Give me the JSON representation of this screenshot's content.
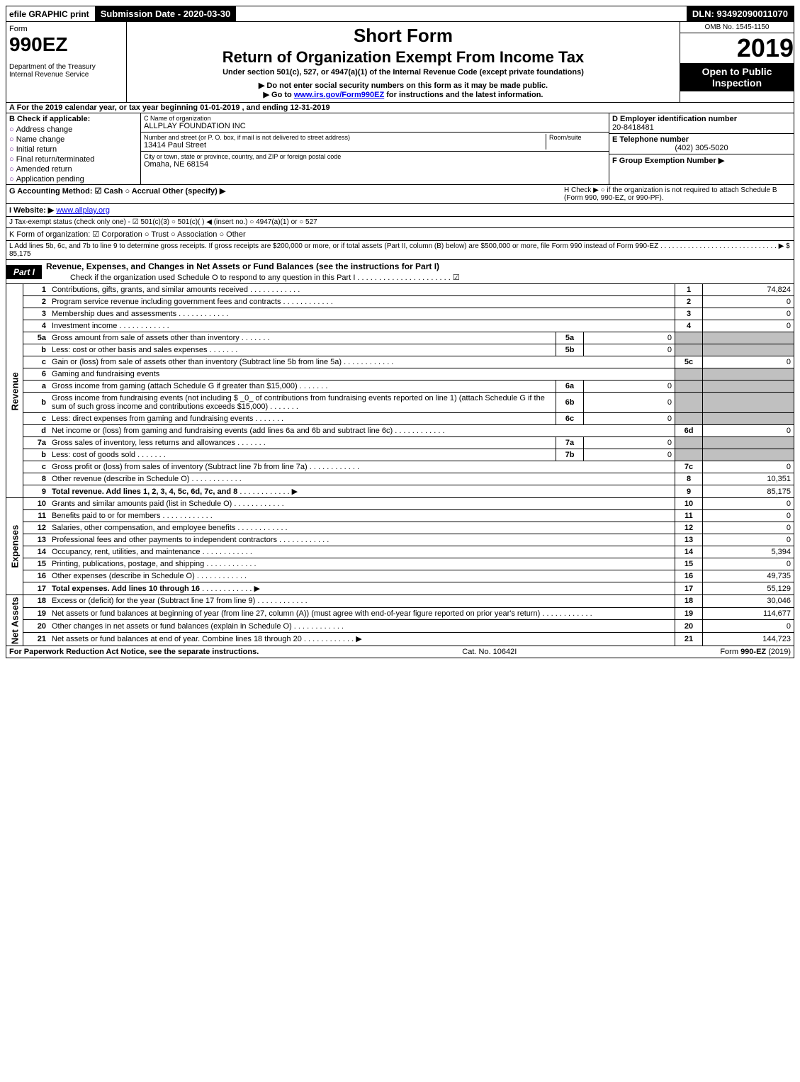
{
  "top": {
    "efile": "efile GRAPHIC print",
    "submission": "Submission Date - 2020-03-30",
    "dln": "DLN: 93492090011070"
  },
  "header": {
    "form_label": "Form",
    "form_number": "990EZ",
    "dept": "Department of the Treasury",
    "irs": "Internal Revenue Service",
    "title1": "Short Form",
    "title2": "Return of Organization Exempt From Income Tax",
    "subtitle": "Under section 501(c), 527, or 4947(a)(1) of the Internal Revenue Code (except private foundations)",
    "note1": "▶ Do not enter social security numbers on this form as it may be made public.",
    "note2_pre": "▶ Go to ",
    "note2_link": "www.irs.gov/Form990EZ",
    "note2_post": " for instructions and the latest information.",
    "omb": "OMB No. 1545-1150",
    "year": "2019",
    "open": "Open to Public Inspection"
  },
  "sectionA": "A  For the 2019 calendar year, or tax year beginning 01-01-2019 , and ending 12-31-2019",
  "checkB": {
    "title": "B  Check if applicable:",
    "items": [
      "Address change",
      "Name change",
      "Initial return",
      "Final return/terminated",
      "Amended return",
      "Application pending"
    ]
  },
  "org": {
    "c_label": "C Name of organization",
    "name": "ALLPLAY FOUNDATION INC",
    "street_label": "Number and street (or P. O. box, if mail is not delivered to street address)",
    "room_label": "Room/suite",
    "street": "13414 Paul Street",
    "city_label": "City or town, state or province, country, and ZIP or foreign postal code",
    "city": "Omaha, NE  68154"
  },
  "right": {
    "d_label": "D Employer identification number",
    "ein": "20-8418481",
    "e_label": "E Telephone number",
    "phone": "(402) 305-5020",
    "f_label": "F Group Exemption Number ▶"
  },
  "lines": {
    "g": "G Accounting Method:  ☑ Cash  ○ Accrual   Other (specify) ▶",
    "h": "H  Check ▶  ○  if the organization is not required to attach Schedule B (Form 990, 990-EZ, or 990-PF).",
    "i_pre": "I Website: ▶",
    "i_link": "www.allplay.org",
    "j": "J Tax-exempt status (check only one) -  ☑ 501(c)(3)  ○  501(c)(  ) ◀ (insert no.)  ○  4947(a)(1) or  ○  527",
    "k": "K Form of organization:   ☑ Corporation   ○ Trust   ○ Association   ○ Other",
    "l": "L Add lines 5b, 6c, and 7b to line 9 to determine gross receipts. If gross receipts are $200,000 or more, or if total assets (Part II, column (B) below) are $500,000 or more, file Form 990 instead of Form 990-EZ . . . . . . . . . . . . . . . . . . . . . . . . . . . . . . ▶ $ 85,175"
  },
  "part1": {
    "tab": "Part I",
    "title": "Revenue, Expenses, and Changes in Net Assets or Fund Balances (see the instructions for Part I)",
    "check": "Check if the organization used Schedule O to respond to any question in this Part I . . . . . . . . . . . . . . . . . . . . . .  ☑"
  },
  "sides": {
    "revenue": "Revenue",
    "expenses": "Expenses",
    "netassets": "Net Assets"
  },
  "rows": [
    {
      "n": "1",
      "d": "Contributions, gifts, grants, and similar amounts received",
      "box": "1",
      "v": "74,824"
    },
    {
      "n": "2",
      "d": "Program service revenue including government fees and contracts",
      "box": "2",
      "v": "0"
    },
    {
      "n": "3",
      "d": "Membership dues and assessments",
      "box": "3",
      "v": "0"
    },
    {
      "n": "4",
      "d": "Investment income",
      "box": "4",
      "v": "0"
    },
    {
      "n": "5a",
      "d": "Gross amount from sale of assets other than inventory",
      "sb": "5a",
      "sv": "0"
    },
    {
      "n": "b",
      "d": "Less: cost or other basis and sales expenses",
      "sb": "5b",
      "sv": "0"
    },
    {
      "n": "c",
      "d": "Gain or (loss) from sale of assets other than inventory (Subtract line 5b from line 5a)",
      "box": "5c",
      "v": "0"
    },
    {
      "n": "6",
      "d": "Gaming and fundraising events"
    },
    {
      "n": "a",
      "d": "Gross income from gaming (attach Schedule G if greater than $15,000)",
      "sb": "6a",
      "sv": "0"
    },
    {
      "n": "b",
      "d": "Gross income from fundraising events (not including $ _0_ of contributions from fundraising events reported on line 1) (attach Schedule G if the sum of such gross income and contributions exceeds $15,000)",
      "sb": "6b",
      "sv": "0"
    },
    {
      "n": "c",
      "d": "Less: direct expenses from gaming and fundraising events",
      "sb": "6c",
      "sv": "0"
    },
    {
      "n": "d",
      "d": "Net income or (loss) from gaming and fundraising events (add lines 6a and 6b and subtract line 6c)",
      "box": "6d",
      "v": "0"
    },
    {
      "n": "7a",
      "d": "Gross sales of inventory, less returns and allowances",
      "sb": "7a",
      "sv": "0"
    },
    {
      "n": "b",
      "d": "Less: cost of goods sold",
      "sb": "7b",
      "sv": "0"
    },
    {
      "n": "c",
      "d": "Gross profit or (loss) from sales of inventory (Subtract line 7b from line 7a)",
      "box": "7c",
      "v": "0"
    },
    {
      "n": "8",
      "d": "Other revenue (describe in Schedule O)",
      "box": "8",
      "v": "10,351"
    },
    {
      "n": "9",
      "d": "Total revenue. Add lines 1, 2, 3, 4, 5c, 6d, 7c, and 8",
      "box": "9",
      "v": "85,175",
      "bold": true,
      "arrow": true
    }
  ],
  "exp_rows": [
    {
      "n": "10",
      "d": "Grants and similar amounts paid (list in Schedule O)",
      "box": "10",
      "v": "0"
    },
    {
      "n": "11",
      "d": "Benefits paid to or for members",
      "box": "11",
      "v": "0"
    },
    {
      "n": "12",
      "d": "Salaries, other compensation, and employee benefits",
      "box": "12",
      "v": "0"
    },
    {
      "n": "13",
      "d": "Professional fees and other payments to independent contractors",
      "box": "13",
      "v": "0"
    },
    {
      "n": "14",
      "d": "Occupancy, rent, utilities, and maintenance",
      "box": "14",
      "v": "5,394"
    },
    {
      "n": "15",
      "d": "Printing, publications, postage, and shipping",
      "box": "15",
      "v": "0"
    },
    {
      "n": "16",
      "d": "Other expenses (describe in Schedule O)",
      "box": "16",
      "v": "49,735"
    },
    {
      "n": "17",
      "d": "Total expenses. Add lines 10 through 16",
      "box": "17",
      "v": "55,129",
      "bold": true,
      "arrow": true
    }
  ],
  "na_rows": [
    {
      "n": "18",
      "d": "Excess or (deficit) for the year (Subtract line 17 from line 9)",
      "box": "18",
      "v": "30,046"
    },
    {
      "n": "19",
      "d": "Net assets or fund balances at beginning of year (from line 27, column (A)) (must agree with end-of-year figure reported on prior year's return)",
      "box": "19",
      "v": "114,677"
    },
    {
      "n": "20",
      "d": "Other changes in net assets or fund balances (explain in Schedule O)",
      "box": "20",
      "v": "0"
    },
    {
      "n": "21",
      "d": "Net assets or fund balances at end of year. Combine lines 18 through 20",
      "box": "21",
      "v": "144,723",
      "arrow": true
    }
  ],
  "footer": {
    "left": "For Paperwork Reduction Act Notice, see the separate instructions.",
    "mid": "Cat. No. 10642I",
    "right": "Form 990-EZ (2019)"
  }
}
